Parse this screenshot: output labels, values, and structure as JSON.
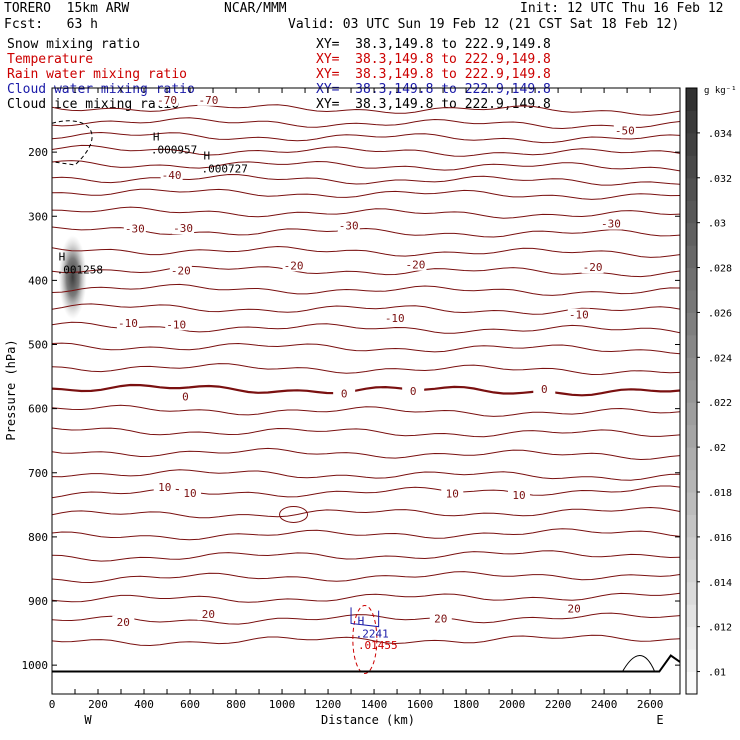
{
  "header": {
    "model": "TORERO  15km ARW",
    "center": "NCAR/MMM",
    "init": "Init: 12 UTC Thu 16 Feb 12",
    "fcst": "Fcst:   63 h",
    "valid": "Valid: 03 UTC Sun 19 Feb 12 (21 CST Sat 18 Feb 12)",
    "fields": [
      {
        "name": "Snow mixing ratio",
        "xy": "XY=  38.3,149.8 to 222.9,149.8",
        "color": "#000000"
      },
      {
        "name": "Temperature",
        "xy": "XY=  38.3,149.8 to 222.9,149.8",
        "color": "#cc0000"
      },
      {
        "name": "Rain water mixing ratio",
        "xy": "XY=  38.3,149.8 to 222.9,149.8",
        "color": "#cc0000"
      },
      {
        "name": "Cloud water mixing ratio",
        "xy": "XY=  38.3,149.8 to 222.9,149.8",
        "color": "#1a1aa8"
      },
      {
        "name": "Cloud ice mixing ratio",
        "xy": "XY=  38.3,149.8 to 222.9,149.8",
        "color": "#000000"
      }
    ]
  },
  "chart_data": {
    "type": "contour",
    "xlabel": "Distance (km)",
    "ylabel": "Pressure (hPa)",
    "x_ticks": [
      0,
      100,
      200,
      300,
      400,
      500,
      600,
      700,
      800,
      900,
      1000,
      1100,
      1200,
      1300,
      1400,
      1500,
      1600,
      1700,
      1800,
      1900,
      2000,
      2100,
      2200,
      2300,
      2400,
      2500,
      2600
    ],
    "x_tick_labels": [
      "0",
      "200",
      "400",
      "600",
      "800",
      "1000",
      "1200",
      "1400",
      "1600",
      "1800",
      "2000",
      "2200",
      "2400",
      "2600"
    ],
    "x_tick_label_values": [
      0,
      200,
      400,
      600,
      800,
      1000,
      1200,
      1400,
      1600,
      1800,
      2000,
      2200,
      2400,
      2600
    ],
    "xlim": [
      0,
      2730
    ],
    "y_ticks": [
      200,
      300,
      400,
      500,
      600,
      700,
      800,
      900,
      1000
    ],
    "ylim": [
      100,
      1045
    ],
    "x_end_labels": {
      "left": "W",
      "right": "E"
    },
    "colorbar": {
      "unit": "g kg⁻¹",
      "ticks": [
        ".01",
        ".012",
        ".014",
        ".016",
        ".018",
        ".02",
        ".022",
        ".024",
        ".026",
        ".028",
        ".03",
        ".032",
        ".034"
      ],
      "tick_values": [
        0.01,
        0.012,
        0.014,
        0.016,
        0.018,
        0.02,
        0.022,
        0.024,
        0.026,
        0.028,
        0.03,
        0.032,
        0.034
      ],
      "range": [
        0.009,
        0.036
      ]
    },
    "isotherm_spacing_c": 5,
    "isotherm_labels": [
      {
        "text": "-70",
        "x": 500,
        "p": 120
      },
      {
        "text": "-70",
        "x": 680,
        "p": 120
      },
      {
        "text": "-50",
        "x": 2490,
        "p": 168
      },
      {
        "text": "-40",
        "x": 520,
        "p": 237
      },
      {
        "text": "-30",
        "x": 360,
        "p": 321
      },
      {
        "text": "-30",
        "x": 570,
        "p": 320
      },
      {
        "text": "-30",
        "x": 1290,
        "p": 316
      },
      {
        "text": "-30",
        "x": 2430,
        "p": 313
      },
      {
        "text": "-20",
        "x": 560,
        "p": 386
      },
      {
        "text": "-20",
        "x": 1050,
        "p": 378
      },
      {
        "text": "-20",
        "x": 1580,
        "p": 377
      },
      {
        "text": "-20",
        "x": 2350,
        "p": 381
      },
      {
        "text": "-10",
        "x": 330,
        "p": 468
      },
      {
        "text": "-10",
        "x": 540,
        "p": 470
      },
      {
        "text": "-10",
        "x": 1490,
        "p": 460
      },
      {
        "text": "-10",
        "x": 2290,
        "p": 455
      },
      {
        "text": "0",
        "x": 580,
        "p": 583
      },
      {
        "text": "0",
        "x": 1270,
        "p": 578
      },
      {
        "text": "0",
        "x": 1570,
        "p": 574
      },
      {
        "text": "0",
        "x": 2140,
        "p": 571
      },
      {
        "text": "10",
        "x": 490,
        "p": 724
      },
      {
        "text": "10",
        "x": 600,
        "p": 733
      },
      {
        "text": "10",
        "x": 1740,
        "p": 734
      },
      {
        "text": "10",
        "x": 2030,
        "p": 736
      },
      {
        "text": "20",
        "x": 310,
        "p": 934
      },
      {
        "text": "20",
        "x": 680,
        "p": 922
      },
      {
        "text": "20",
        "x": 1690,
        "p": 929
      },
      {
        "text": "20",
        "x": 2270,
        "p": 913
      }
    ],
    "extrema": [
      {
        "field": "cloud ice",
        "label": "H",
        "value": ".000957",
        "x": 430,
        "p": 185
      },
      {
        "field": "cloud ice",
        "label": "H",
        "value": ".000727",
        "x": 650,
        "p": 215
      },
      {
        "field": "snow",
        "label": "H",
        "value": ".001258",
        "x": 20,
        "p": 372
      },
      {
        "field": "cloud water",
        "label": "H",
        "value": ".2241",
        "x": 1320,
        "p": 940
      },
      {
        "field": "rain water",
        "label": "",
        "value": ".01455",
        "x": 1330,
        "p": 958
      }
    ],
    "shaded_snow_max": {
      "x": 90,
      "p": 395,
      "value": 0.035
    }
  }
}
